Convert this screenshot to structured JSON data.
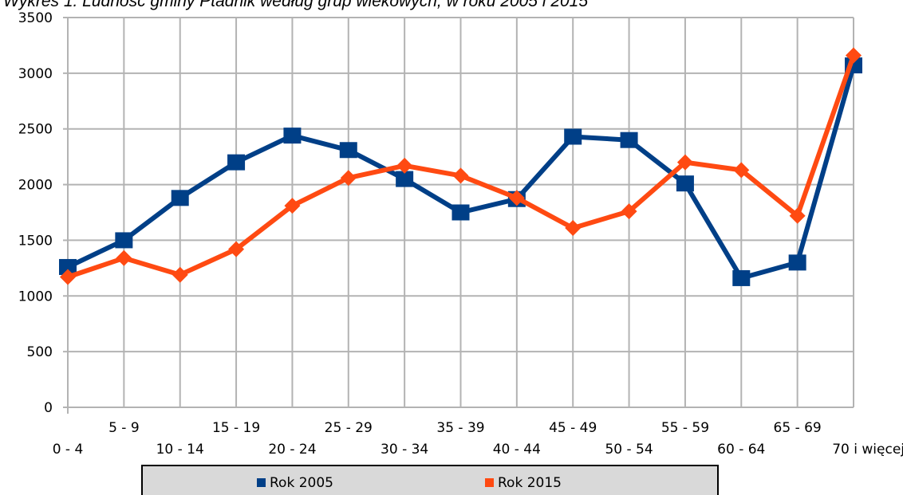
{
  "chart_data": {
    "type": "line",
    "title": "Wykres 1. Ludność gminy Ptadnik według grup wiekowych, w roku 2005 i 2015",
    "xlabel": "",
    "ylabel": "",
    "categories": [
      "0 - 4",
      "5 - 9",
      "10 - 14",
      "15 - 19",
      "20 - 24",
      "25 - 29",
      "30 - 34",
      "35 - 39",
      "40 - 44",
      "45 - 49",
      "50 - 54",
      "55 - 59",
      "60 - 64",
      "65 - 69",
      "70 i więcej"
    ],
    "ylim": [
      0,
      3500
    ],
    "yticks": [
      0,
      500,
      1000,
      1500,
      2000,
      2500,
      3000,
      3500
    ],
    "grid": true,
    "legend": "bottom",
    "series": [
      {
        "name": "Rok 2005",
        "color": "#003f87",
        "marker": "square",
        "values": [
          1260,
          1500,
          1880,
          2200,
          2440,
          2310,
          2050,
          1750,
          1870,
          2430,
          2400,
          2010,
          1160,
          1300,
          3070
        ]
      },
      {
        "name": "Rok 2015",
        "color": "#ff4a12",
        "marker": "diamond",
        "values": [
          1170,
          1340,
          1190,
          1420,
          1810,
          2060,
          2170,
          2080,
          1880,
          1610,
          1760,
          2200,
          2130,
          1720,
          3160
        ]
      }
    ]
  }
}
